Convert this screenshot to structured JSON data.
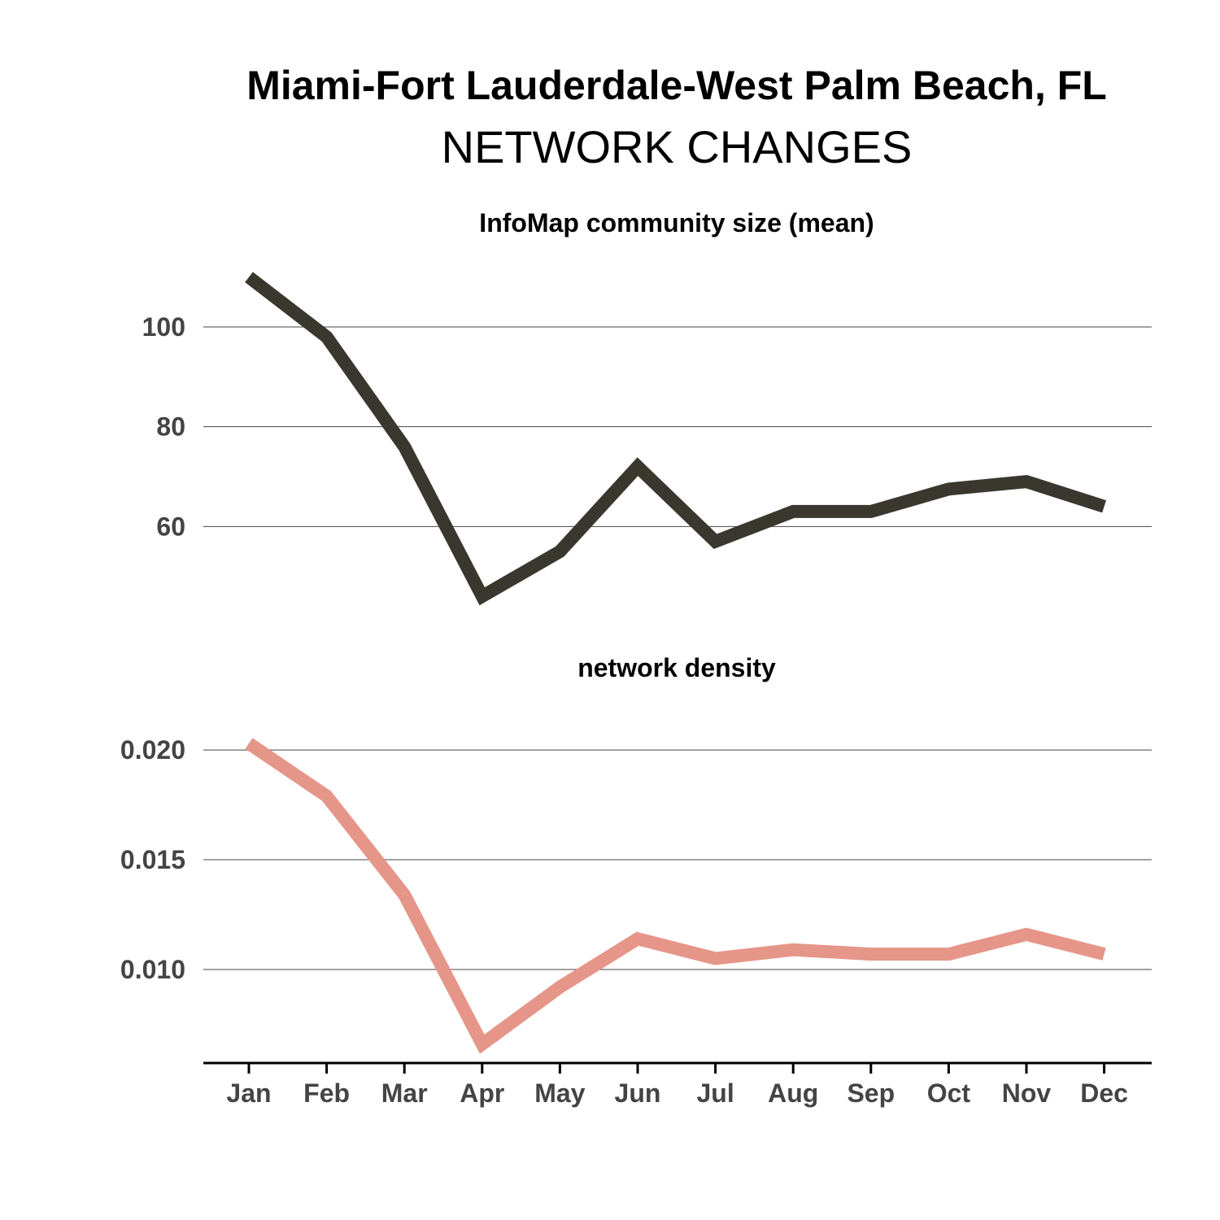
{
  "title": "Miami-Fort Lauderdale-West Palm Beach, FL",
  "subtitle": "NETWORK CHANGES",
  "chart_data": [
    {
      "type": "line",
      "title": "InfoMap community size (mean)",
      "categories": [
        "Jan",
        "Feb",
        "Mar",
        "Apr",
        "May",
        "Jun",
        "Jul",
        "Aug",
        "Sep",
        "Oct",
        "Nov",
        "Dec"
      ],
      "values": [
        110,
        98,
        76,
        46,
        55,
        72,
        57,
        63,
        63,
        67.5,
        69,
        64
      ],
      "yticks": [
        "100",
        "80",
        "60"
      ],
      "ytick_values": [
        100,
        80,
        60
      ],
      "ylim": [
        40,
        115
      ],
      "grid": true,
      "color": "#3a372e"
    },
    {
      "type": "line",
      "title": "network density",
      "categories": [
        "Jan",
        "Feb",
        "Mar",
        "Apr",
        "May",
        "Jun",
        "Jul",
        "Aug",
        "Sep",
        "Oct",
        "Nov",
        "Dec"
      ],
      "values": [
        0.0203,
        0.0179,
        0.0134,
        0.0066,
        0.0092,
        0.0114,
        0.0105,
        0.0109,
        0.0107,
        0.0107,
        0.0116,
        0.0107
      ],
      "yticks": [
        "0.020",
        "0.015",
        "0.010"
      ],
      "ytick_values": [
        0.02,
        0.015,
        0.01
      ],
      "ylim": [
        0.006,
        0.0223
      ],
      "grid": true,
      "color": "#e59689"
    }
  ]
}
